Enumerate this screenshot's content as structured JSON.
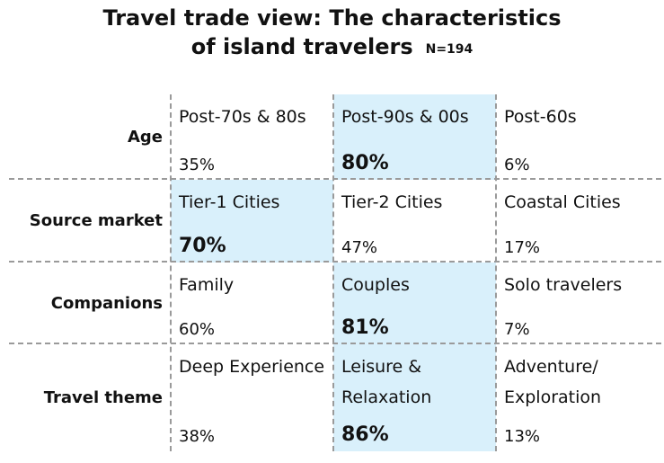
{
  "title": {
    "line1": "Travel trade view: The characteristics",
    "line2": "of island travelers",
    "n": "N=194"
  },
  "chart_data": {
    "type": "table",
    "columns": 3,
    "rows": [
      {
        "label": "Age",
        "cells": [
          {
            "label": "Post-70s & 80s",
            "value": "35%",
            "highlight": false
          },
          {
            "label": "Post-90s & 00s",
            "value": "80%",
            "highlight": true
          },
          {
            "label": "Post-60s",
            "value": "6%",
            "highlight": false
          }
        ]
      },
      {
        "label": "Source market",
        "cells": [
          {
            "label": "Tier-1 Cities",
            "value": "70%",
            "highlight": true
          },
          {
            "label": "Tier-2 Cities",
            "value": "47%",
            "highlight": false
          },
          {
            "label": "Coastal Cities",
            "value": "17%",
            "highlight": false
          }
        ]
      },
      {
        "label": "Companions",
        "cells": [
          {
            "label": "Family",
            "value": "60%",
            "highlight": false
          },
          {
            "label": "Couples",
            "value": "81%",
            "highlight": true
          },
          {
            "label": "Solo travelers",
            "value": "7%",
            "highlight": false
          }
        ]
      },
      {
        "label": "Travel theme",
        "cells": [
          {
            "label": "Deep Experience",
            "value": "38%",
            "highlight": false
          },
          {
            "label": "Leisure & Relaxation",
            "value": "86%",
            "highlight": true
          },
          {
            "label": "Adventure/ Exploration",
            "value": "13%",
            "highlight": false
          }
        ]
      }
    ],
    "highlight_color": "#d9f0fb"
  }
}
